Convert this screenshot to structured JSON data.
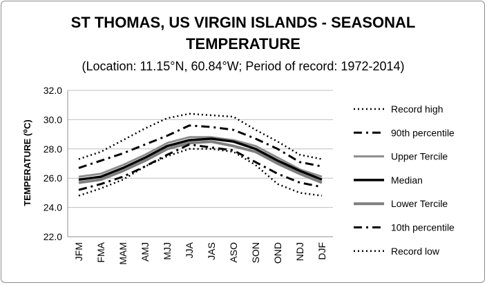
{
  "chart_data": {
    "type": "line",
    "title_line1": "ST THOMAS, US VIRGIN ISLANDS - SEASONAL",
    "title_line2": "TEMPERATURE",
    "subtitle": "(Location: 11.15°N, 60.84°W; Period of record: 1972-2014)",
    "ylabel": "TEMPERATURE (⁰C)",
    "ylim": [
      22,
      32
    ],
    "yticks": [
      "22.0",
      "24.0",
      "26.0",
      "28.0",
      "30.0",
      "32.0"
    ],
    "categories": [
      "JFM",
      "FMA",
      "MAM",
      "AMJ",
      "MJJ",
      "JJA",
      "JAS",
      "ASO",
      "SON",
      "OND",
      "NDJ",
      "DJF"
    ],
    "grid": true,
    "legend": "right",
    "series": [
      {
        "name": "Record high",
        "style": "dotted",
        "color": "#000000",
        "width": 2.5,
        "values": [
          27.3,
          27.8,
          28.6,
          29.4,
          30.1,
          30.4,
          30.3,
          30.2,
          29.3,
          28.5,
          27.6,
          27.3
        ]
      },
      {
        "name": "90th percentile",
        "style": "dashdot",
        "color": "#000000",
        "width": 3,
        "values": [
          26.7,
          27.2,
          27.7,
          28.3,
          28.9,
          29.6,
          29.5,
          29.3,
          28.7,
          28.0,
          27.1,
          26.8
        ]
      },
      {
        "name": "Upper Tercile",
        "style": "solid",
        "color": "#8c8c8c",
        "width": 3,
        "values": [
          26.1,
          26.3,
          26.9,
          27.6,
          28.4,
          28.8,
          28.8,
          28.6,
          28.2,
          27.4,
          26.6,
          26.1
        ]
      },
      {
        "name": "Median",
        "style": "solid",
        "color": "#000000",
        "width": 3.5,
        "values": [
          25.9,
          26.1,
          26.7,
          27.4,
          28.2,
          28.6,
          28.7,
          28.5,
          28.0,
          27.2,
          26.5,
          25.9
        ]
      },
      {
        "name": "Lower Tercile",
        "style": "solid",
        "color": "#7f7f7f",
        "width": 4,
        "values": [
          25.7,
          25.9,
          26.5,
          27.2,
          28.0,
          28.4,
          28.5,
          28.2,
          27.8,
          27.0,
          26.3,
          25.7
        ]
      },
      {
        "name": "10th percentile",
        "style": "dashdot",
        "color": "#000000",
        "width": 3,
        "values": [
          25.2,
          25.6,
          26.1,
          26.8,
          27.6,
          28.3,
          28.1,
          27.9,
          27.1,
          26.3,
          25.7,
          25.4
        ]
      },
      {
        "name": "Record low",
        "style": "dotted",
        "color": "#000000",
        "width": 2.5,
        "values": [
          24.8,
          25.3,
          25.9,
          26.8,
          27.5,
          28.0,
          28.0,
          27.8,
          26.9,
          25.6,
          25.0,
          24.8
        ]
      }
    ]
  }
}
